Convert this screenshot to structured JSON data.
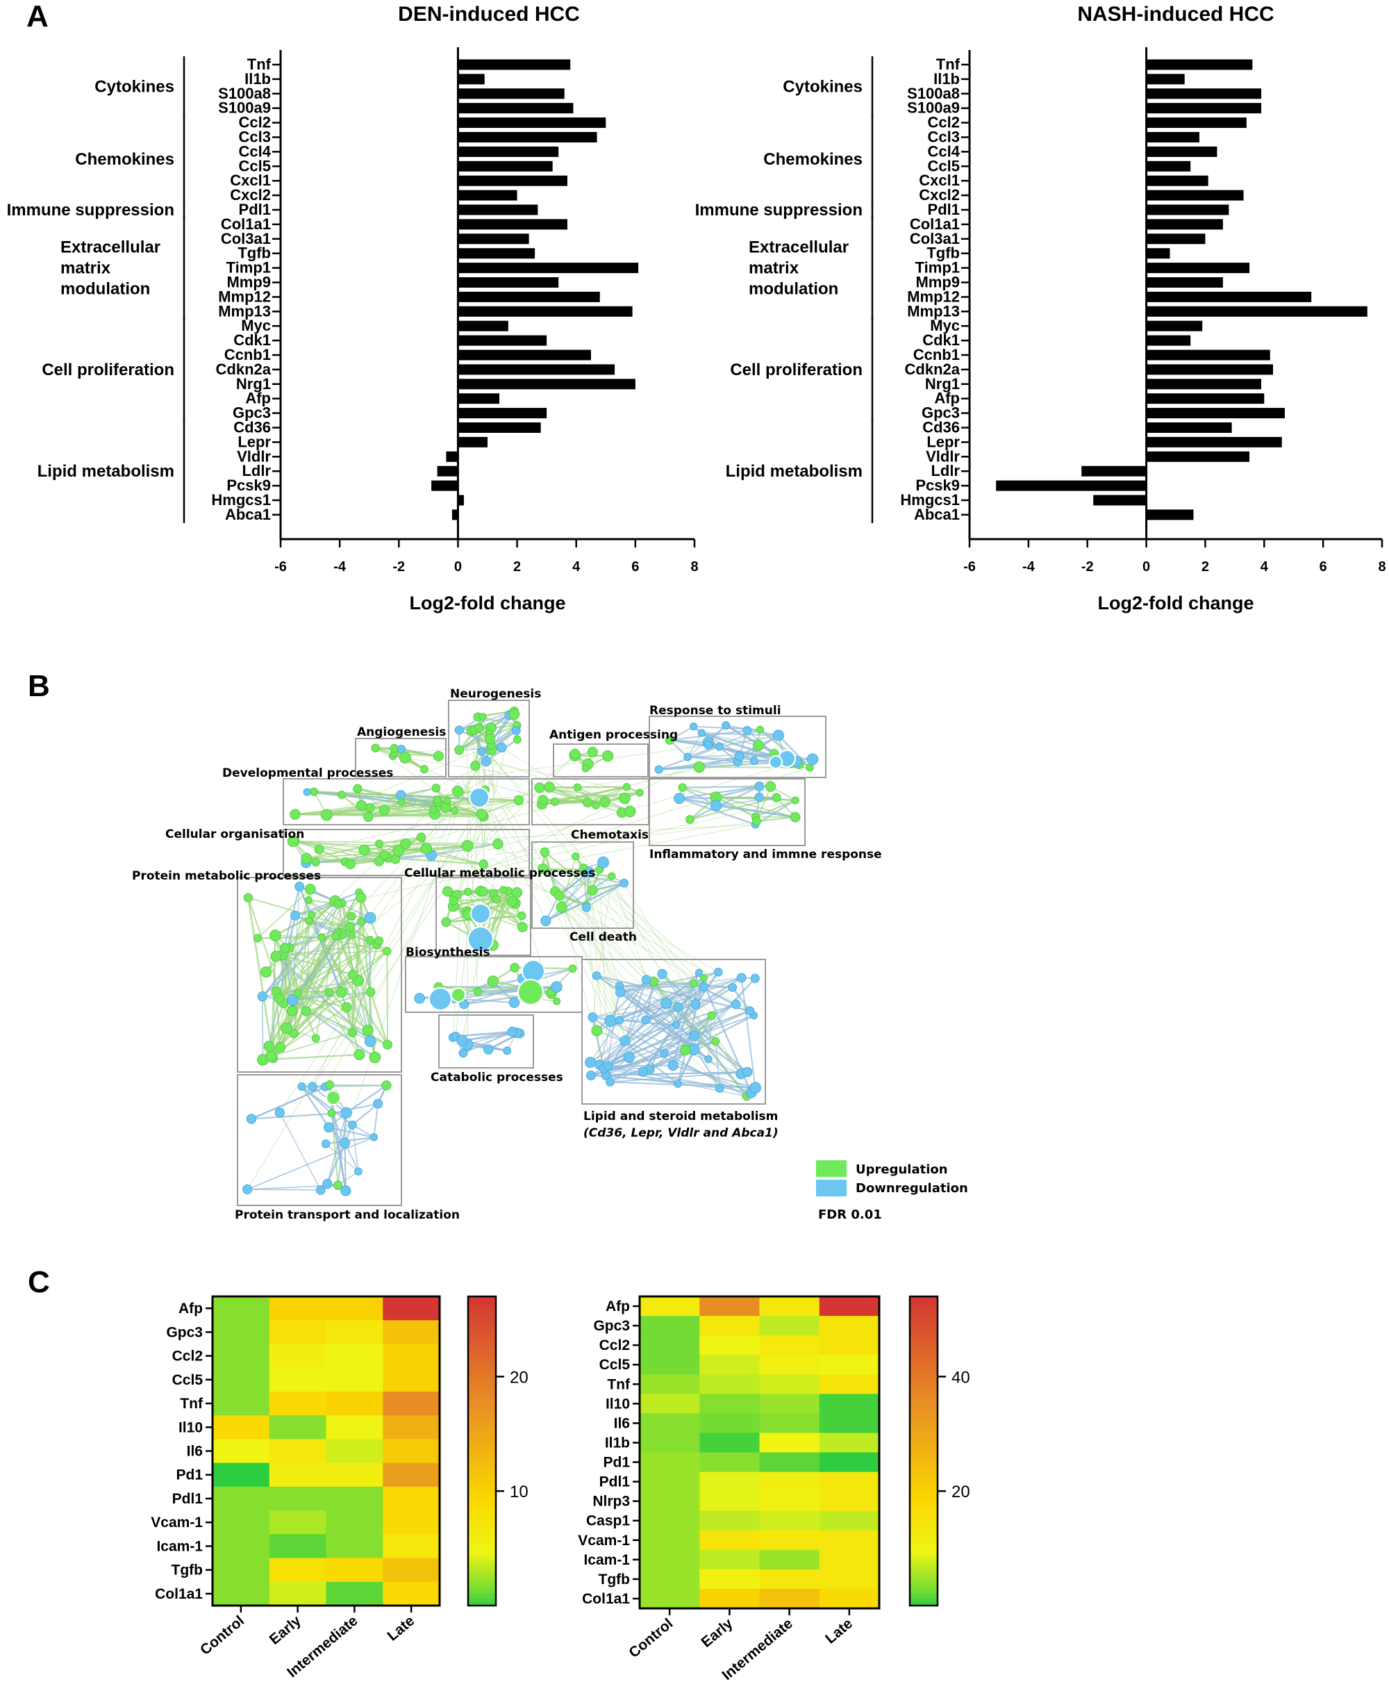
{
  "panels": {
    "A": "A",
    "B": "B",
    "C": "C"
  },
  "chart_data": [
    {
      "type": "bar",
      "orientation": "horizontal",
      "title": "DEN-induced HCC",
      "xlabel": "Log2-fold change",
      "xlim": [
        -6,
        8
      ],
      "xticks": [
        -6,
        -4,
        -2,
        0,
        2,
        4,
        6,
        8
      ],
      "categories": [
        "Tnf",
        "Il1b",
        "S100a8",
        "S100a9",
        "Ccl2",
        "Ccl3",
        "Ccl4",
        "Ccl5",
        "Cxcl1",
        "Cxcl2",
        "Pdl1",
        "Col1a1",
        "Col3a1",
        "Tgfb",
        "Timp1",
        "Mmp9",
        "Mmp12",
        "Mmp13",
        "Myc",
        "Cdk1",
        "Ccnb1",
        "Cdkn2a",
        "Nrg1",
        "Afp",
        "Gpc3",
        "Cd36",
        "Lepr",
        "Vldlr",
        "Ldlr",
        "Pcsk9",
        "Hmgcs1",
        "Abca1"
      ],
      "values": [
        3.8,
        0.9,
        3.6,
        3.9,
        5.0,
        4.7,
        3.4,
        3.2,
        3.7,
        2.0,
        2.7,
        3.7,
        2.4,
        2.6,
        6.1,
        3.4,
        4.8,
        5.9,
        1.7,
        3.0,
        4.5,
        5.3,
        6.0,
        1.4,
        3.0,
        2.8,
        1.0,
        -0.4,
        -0.7,
        -0.9,
        0.2,
        -0.2
      ],
      "groups": [
        {
          "label": [
            "Cytokines"
          ],
          "items": [
            "Tnf",
            "Il1b",
            "S100a8",
            "S100a9"
          ]
        },
        {
          "label": [
            "Chemokines"
          ],
          "items": [
            "Ccl2",
            "Ccl3",
            "Ccl4",
            "Ccl5",
            "Cxcl1",
            "Cxcl2"
          ]
        },
        {
          "label": [
            "Immune suppression"
          ],
          "items": [
            "Pdl1"
          ]
        },
        {
          "label": [
            "Extracellular",
            "matrix",
            "modulation"
          ],
          "items": [
            "Col1a1",
            "Col3a1",
            "Tgfb",
            "Timp1",
            "Mmp9",
            "Mmp12",
            "Mmp13"
          ]
        },
        {
          "label": [
            "Cell proliferation"
          ],
          "items": [
            "Myc",
            "Cdk1",
            "Ccnb1",
            "Cdkn2a",
            "Nrg1",
            "Afp",
            "Gpc3"
          ]
        },
        {
          "label": [
            "Lipid metabolism"
          ],
          "items": [
            "Cd36",
            "Lepr",
            "Vldlr",
            "Ldlr",
            "Pcsk9",
            "Hmgcs1",
            "Abca1"
          ]
        }
      ]
    },
    {
      "type": "bar",
      "orientation": "horizontal",
      "title": "NASH-induced HCC",
      "xlabel": "Log2-fold change",
      "xlim": [
        -6,
        8
      ],
      "xticks": [
        -6,
        -4,
        -2,
        0,
        2,
        4,
        6,
        8
      ],
      "categories": [
        "Tnf",
        "Il1b",
        "S100a8",
        "S100a9",
        "Ccl2",
        "Ccl3",
        "Ccl4",
        "Ccl5",
        "Cxcl1",
        "Cxcl2",
        "Pdl1",
        "Col1a1",
        "Col3a1",
        "Tgfb",
        "Timp1",
        "Mmp9",
        "Mmp12",
        "Mmp13",
        "Myc",
        "Cdk1",
        "Ccnb1",
        "Cdkn2a",
        "Nrg1",
        "Afp",
        "Gpc3",
        "Cd36",
        "Lepr",
        "Vldlr",
        "Ldlr",
        "Pcsk9",
        "Hmgcs1",
        "Abca1"
      ],
      "values": [
        3.6,
        1.3,
        3.9,
        3.9,
        3.4,
        1.8,
        2.4,
        1.5,
        2.1,
        3.3,
        2.8,
        2.6,
        2.0,
        0.8,
        3.5,
        2.6,
        5.6,
        7.5,
        1.9,
        1.5,
        4.2,
        4.3,
        3.9,
        4.0,
        4.7,
        2.9,
        4.6,
        3.5,
        -2.2,
        -5.1,
        -1.8,
        1.6
      ],
      "groups": [
        {
          "label": [
            "Cytokines"
          ],
          "items": [
            "Tnf",
            "Il1b",
            "S100a8",
            "S100a9"
          ]
        },
        {
          "label": [
            "Chemokines"
          ],
          "items": [
            "Ccl2",
            "Ccl3",
            "Ccl4",
            "Ccl5",
            "Cxcl1",
            "Cxcl2"
          ]
        },
        {
          "label": [
            "Immune suppression"
          ],
          "items": [
            "Pdl1"
          ]
        },
        {
          "label": [
            "Extracellular",
            "matrix",
            "modulation"
          ],
          "items": [
            "Col1a1",
            "Col3a1",
            "Tgfb",
            "Timp1",
            "Mmp9",
            "Mmp12",
            "Mmp13"
          ]
        },
        {
          "label": [
            "Cell proliferation"
          ],
          "items": [
            "Myc",
            "Cdk1",
            "Ccnb1",
            "Cdkn2a",
            "Nrg1",
            "Afp",
            "Gpc3"
          ]
        },
        {
          "label": [
            "Lipid metabolism"
          ],
          "items": [
            "Cd36",
            "Lepr",
            "Vldlr",
            "Ldlr",
            "Pcsk9",
            "Hmgcs1",
            "Abca1"
          ]
        }
      ]
    },
    {
      "type": "heatmap",
      "columns": [
        "Control",
        "Early",
        "Intermediate",
        "Late"
      ],
      "rows": [
        "Afp",
        "Gpc3",
        "Ccl2",
        "Ccl5",
        "Tnf",
        "Il10",
        "Il6",
        "Pd1",
        "Pdl1",
        "Vcam-1",
        "Icam-1",
        "Tgfb",
        "Col1a1"
      ],
      "values": [
        [
          2,
          10,
          10,
          27
        ],
        [
          2,
          8,
          7,
          12
        ],
        [
          2,
          6,
          5,
          10
        ],
        [
          2,
          5,
          5,
          10
        ],
        [
          2,
          9,
          10,
          18
        ],
        [
          9,
          2,
          5,
          14
        ],
        [
          5,
          7,
          4,
          11
        ],
        [
          0,
          6,
          6,
          16
        ],
        [
          2,
          2,
          2,
          9
        ],
        [
          2,
          3,
          2,
          9
        ],
        [
          2,
          1,
          2,
          7
        ],
        [
          2,
          8,
          9,
          12
        ],
        [
          2,
          4,
          1,
          9
        ]
      ],
      "colorbar": {
        "min": 0,
        "max": 27,
        "ticks": [
          10,
          20
        ]
      }
    },
    {
      "type": "heatmap",
      "columns": [
        "Control",
        "Early",
        "Intermediate",
        "Late"
      ],
      "rows": [
        "Afp",
        "Gpc3",
        "Ccl2",
        "Ccl5",
        "Tnf",
        "Il10",
        "Il6",
        "Il1b",
        "Pd1",
        "Pdl1",
        "Nlrp3",
        "Casp1",
        "Vcam-1",
        "Icam-1",
        "Tgfb",
        "Col1a1"
      ],
      "values": [
        [
          13,
          36,
          14,
          54
        ],
        [
          3,
          14,
          7,
          15
        ],
        [
          3,
          10,
          13,
          15
        ],
        [
          3,
          8,
          11,
          10
        ],
        [
          5,
          7,
          8,
          15
        ],
        [
          7,
          4,
          5,
          1
        ],
        [
          4,
          3,
          4,
          1
        ],
        [
          4,
          1,
          10,
          7
        ],
        [
          5,
          4,
          2,
          0
        ],
        [
          5,
          9,
          12,
          14
        ],
        [
          5,
          9,
          11,
          14
        ],
        [
          5,
          7,
          8,
          7
        ],
        [
          5,
          15,
          14,
          14
        ],
        [
          5,
          7,
          5,
          14
        ],
        [
          5,
          11,
          14,
          14
        ],
        [
          5,
          20,
          24,
          18
        ]
      ],
      "colorbar": {
        "min": 0,
        "max": 54,
        "ticks": [
          20,
          40
        ]
      }
    }
  ],
  "network": {
    "clusters": [
      "Neurogenesis",
      "Angiogenesis",
      "Response to stimuli",
      "Antigen processing",
      "Developmental processes",
      "Cellular organisation",
      "Chemotaxis",
      "Inflammatory and immne response",
      "Protein metabolic processes",
      "Cellular metabolic processes",
      "Cell death",
      "Biosynthesis",
      "Catabolic processes",
      "Lipid and steroid metabolism",
      "(Cd36, Lepr, Vldlr and Abca1)",
      "Protein transport and localization"
    ],
    "legend": {
      "up": "Upregulation",
      "down": "Downregulation",
      "fdr": "FDR 0.01"
    },
    "colors": {
      "up": "#6fea5a",
      "down": "#6cc6f2",
      "up_edge": "#9bd47a",
      "down_edge": "#8fb8d8"
    }
  },
  "colors": {
    "bar": "#000000",
    "cluster_box": "#9a9a9a"
  }
}
